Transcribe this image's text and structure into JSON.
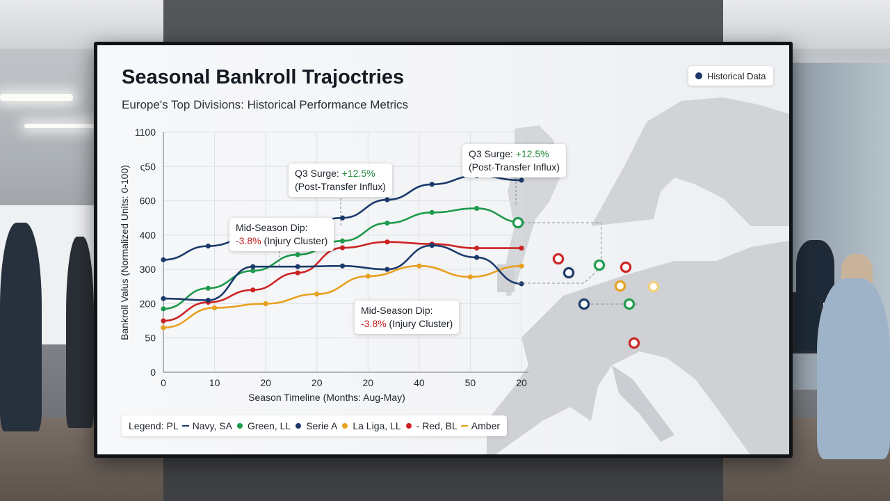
{
  "title": "Seasonal Bankroll Trajoctries",
  "subtitle": "Europe's Top Divisions: Historical Performance Metrics",
  "historical_badge": "Historical Data",
  "callouts": {
    "surge_left": {
      "title": "Q3 Surge:",
      "value": "+12.5%",
      "note": "(Post-Transfer Influx)"
    },
    "surge_right": {
      "title": "Q3 Surge:",
      "value": "+12.5%",
      "note": "(Post-Transfer Influx)"
    },
    "dip_left": {
      "title": "Mid-Season Dip:",
      "value": "-3.8%",
      "note": "(Injury Cluster)"
    },
    "dip_right": {
      "title": "Mid-Season Dip:",
      "value": "-3.8%",
      "note": "(Injury Cluster)"
    }
  },
  "legend": {
    "prefix": "Legend: PL",
    "items": [
      {
        "text": "Navy, SA",
        "marker": "line",
        "color": "#1b3a6b"
      },
      {
        "text": "Green, LL",
        "marker": "dot",
        "color": "#1e9a4c"
      },
      {
        "text": "Serie A",
        "marker": "dot",
        "color": "#1b3a6b"
      },
      {
        "text": "La Liga, LL",
        "marker": "dot",
        "color": "#e8a020"
      },
      {
        "text": "- Red, BL",
        "marker": "dot",
        "color": "#cc2323"
      },
      {
        "text": "Amber",
        "marker": "line",
        "color": "#e8a020"
      }
    ]
  },
  "chart_data": {
    "type": "line",
    "xlabel": "Season Timeline (Months: Aug-May)",
    "ylabel": "Bankroll Valus (Normalized Units: 0-100)",
    "x_tick_labels": [
      "0",
      "10",
      "20",
      "20",
      "20",
      "40",
      "50",
      "20"
    ],
    "y_tick_labels": [
      "1100",
      "ς50",
      "600",
      "400",
      "300",
      "200",
      "50",
      "0"
    ],
    "grid": true,
    "series": [
      {
        "color": "#1b3a6b",
        "values": [
          328,
          368,
          395,
          423,
          450,
          503,
          548,
          573,
          560
        ]
      },
      {
        "color": "#1e9a4c",
        "values": [
          185,
          245,
          296,
          343,
          383,
          435,
          466,
          478,
          437
        ]
      },
      {
        "color": "#cc2323",
        "values": [
          150,
          204,
          240,
          290,
          363,
          380,
          374,
          362,
          362
        ]
      },
      {
        "color": "#e8a020",
        "values": [
          130,
          188,
          200,
          228,
          280,
          310,
          278,
          310
        ]
      },
      {
        "color": "#1b3a6b",
        "values": [
          215,
          210,
          308,
          308,
          310,
          300,
          370,
          335,
          258
        ]
      }
    ]
  },
  "map_markers": [
    {
      "color": "#1e9a4c"
    },
    {
      "color": "#cc2323"
    },
    {
      "color": "#1b3a6b"
    },
    {
      "color": "#1e9a4c"
    },
    {
      "color": "#cc2323"
    },
    {
      "color": "#e8a020"
    },
    {
      "color": "#f4d27a"
    },
    {
      "color": "#1b3a6b"
    },
    {
      "color": "#1e9a4c"
    },
    {
      "color": "#cc2323"
    }
  ]
}
